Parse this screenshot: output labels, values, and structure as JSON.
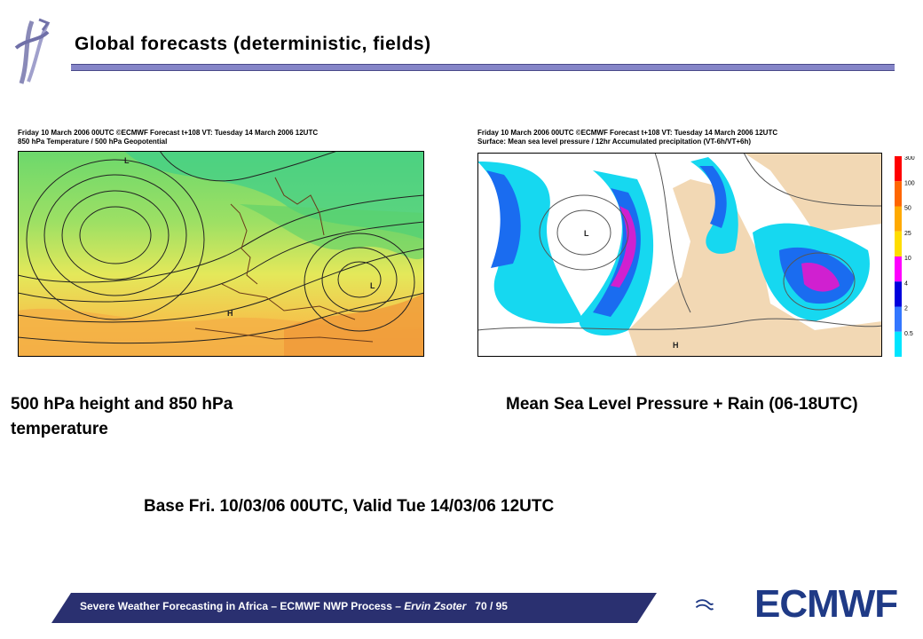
{
  "slide": {
    "title": "Global forecasts (deterministic, fields)"
  },
  "left_map": {
    "header_line1": "Friday 10 March 2006 00UTC ©ECMWF Forecast t+108 VT: Tuesday 14 March 2006 12UTC",
    "header_line2": "850 hPa Temperature / 500 hPa Geopotential",
    "caption": "500 hPa height and 850 hPa temperature"
  },
  "right_map": {
    "header_line1": "Friday 10 March 2006 00UTC ©ECMWF Forecast t+108 VT: Tuesday 14 March 2006 12UTC",
    "header_line2": "Surface: Mean sea level pressure / 12hr Accumulated precipitation (VT-6h/VT+6h)",
    "caption": "Mean Sea Level Pressure + Rain (06-18UTC)",
    "legend_labels": [
      "300",
      "100",
      "50",
      "25",
      "10",
      "4",
      "2",
      "0.5"
    ],
    "legend_colors": [
      "#ff0000",
      "#ff6600",
      "#ffaa00",
      "#ffdd00",
      "#ff00ff",
      "#0000dd",
      "#3377ff",
      "#00e5ff"
    ]
  },
  "base_text": "Base Fri. 10/03/06 00UTC, Valid Tue 14/03/06 12UTC",
  "footer": {
    "main": "Severe Weather Forecasting in Africa – ECMWF NWP Process – ",
    "author": "Ervin Zsoter",
    "page": "70 / 95"
  },
  "logo_text": "ECMWF"
}
